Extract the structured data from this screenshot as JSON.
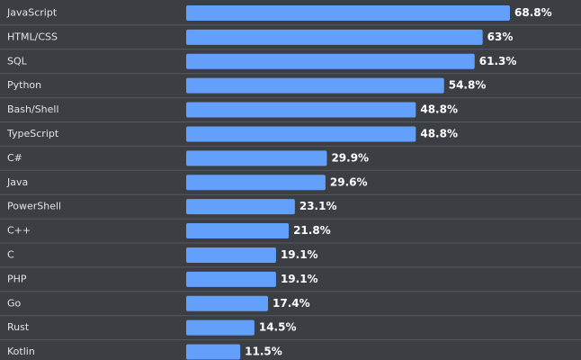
{
  "chart_data": {
    "type": "bar",
    "orientation": "horizontal",
    "title": "",
    "xlabel": "",
    "ylabel": "",
    "xlim": [
      0,
      68.8
    ],
    "categories": [
      "JavaScript",
      "HTML/CSS",
      "SQL",
      "Python",
      "Bash/Shell",
      "TypeScript",
      "C#",
      "Java",
      "PowerShell",
      "C++",
      "C",
      "PHP",
      "Go",
      "Rust",
      "Kotlin"
    ],
    "values": [
      68.8,
      63,
      61.3,
      54.8,
      48.8,
      48.8,
      29.9,
      29.6,
      23.1,
      21.8,
      19.1,
      19.1,
      17.4,
      14.5,
      11.5
    ],
    "value_labels": [
      "68.8%",
      "63%",
      "61.3%",
      "54.8%",
      "48.8%",
      "48.8%",
      "29.9%",
      "29.6%",
      "23.1%",
      "21.8%",
      "19.1%",
      "19.1%",
      "17.4%",
      "14.5%",
      "11.5%"
    ],
    "colors": {
      "background": "#3b3e43",
      "bar": "#62a0fb",
      "divider": "#555a61",
      "label": "#e2e4e8",
      "value": "#ffffff"
    }
  }
}
